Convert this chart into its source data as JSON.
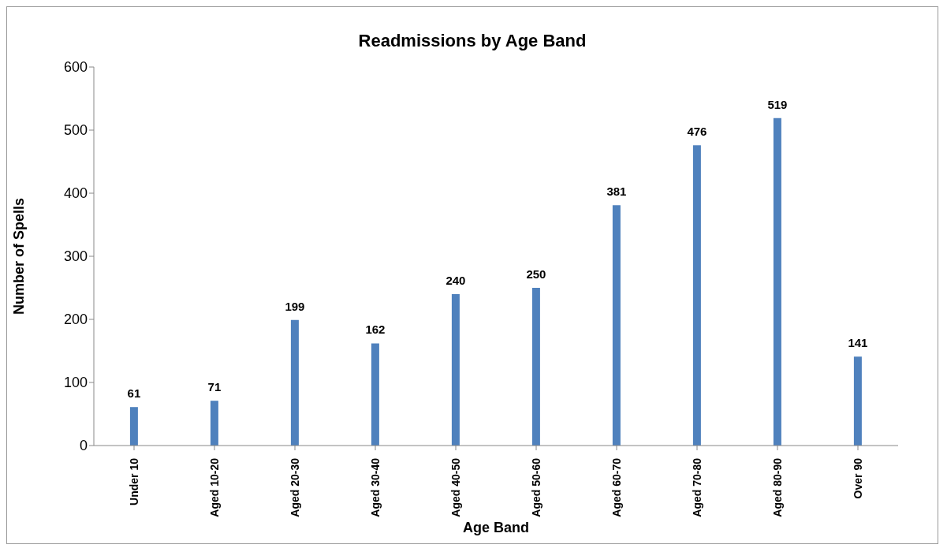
{
  "chart_data": {
    "type": "bar",
    "title": "Readmissions by Age Band",
    "xlabel": "Age Band",
    "ylabel": "Number of Spells",
    "categories": [
      "Under 10",
      "Aged 10-20",
      "Aged 20-30",
      "Aged 30-40",
      "Aged 40-50",
      "Aged 50-60",
      "Aged 60-70",
      "Aged 70-80",
      "Aged 80-90",
      "Over 90"
    ],
    "values": [
      61,
      71,
      199,
      162,
      240,
      250,
      381,
      476,
      519,
      141
    ],
    "color": "#4f81bd",
    "ylim": [
      0,
      600
    ],
    "yticks": [
      0,
      100,
      200,
      300,
      400,
      500,
      600
    ],
    "grid": false,
    "legend": false,
    "data_labels": true
  }
}
